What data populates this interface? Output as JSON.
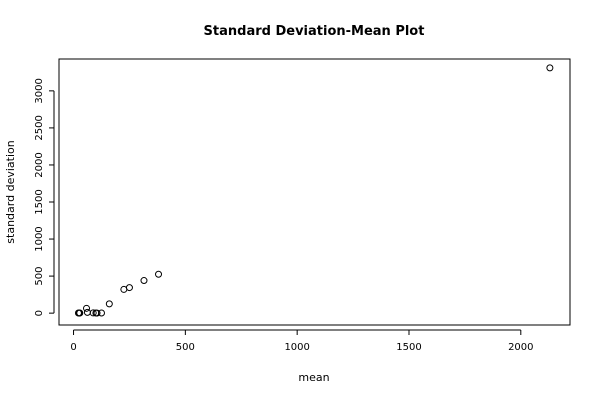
{
  "chart_data": {
    "type": "scatter",
    "title": "Standard Deviation-Mean Plot",
    "xlabel": "mean",
    "ylabel": "standard deviation",
    "xlim": [
      -65,
      2220
    ],
    "ylim": [
      -160,
      3430
    ],
    "x_ticks": [
      0,
      500,
      1000,
      1500,
      2000
    ],
    "y_ticks": [
      0,
      500,
      1000,
      1500,
      2000,
      2500,
      3000
    ],
    "points": [
      {
        "x": 22,
        "y": 2
      },
      {
        "x": 25,
        "y": 1
      },
      {
        "x": 28,
        "y": 2
      },
      {
        "x": 58,
        "y": 65
      },
      {
        "x": 62,
        "y": 10
      },
      {
        "x": 88,
        "y": 3
      },
      {
        "x": 100,
        "y": 2
      },
      {
        "x": 105,
        "y": 1
      },
      {
        "x": 125,
        "y": 2
      },
      {
        "x": 160,
        "y": 125
      },
      {
        "x": 225,
        "y": 320
      },
      {
        "x": 250,
        "y": 345
      },
      {
        "x": 315,
        "y": 440
      },
      {
        "x": 380,
        "y": 525
      },
      {
        "x": 2130,
        "y": 3310
      }
    ],
    "grid": false,
    "legend": "none"
  }
}
